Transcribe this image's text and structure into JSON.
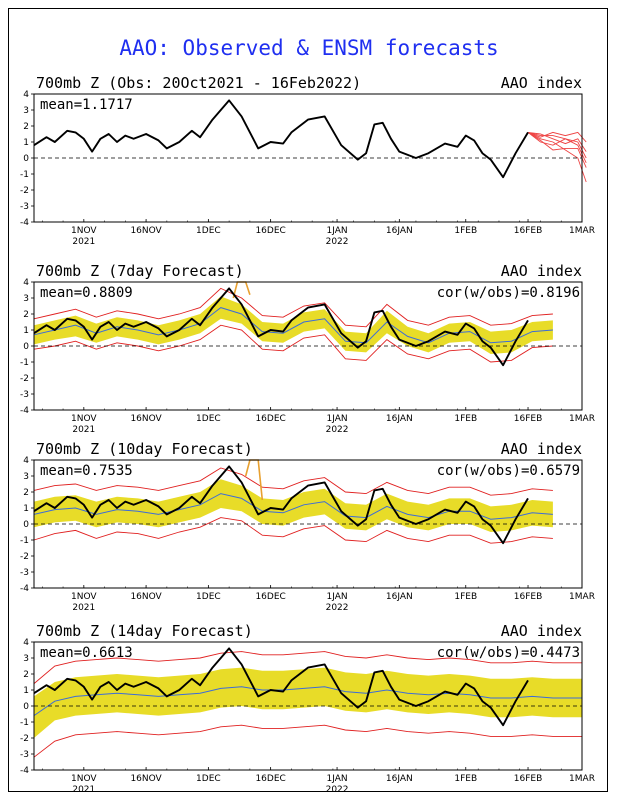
{
  "title": "AAO: Observed & ENSM forecasts",
  "x_tick_labels": [
    {
      "label": "1NOV",
      "sub": "2021",
      "day": 12
    },
    {
      "label": "16NOV",
      "sub": "",
      "day": 27
    },
    {
      "label": "1DEC",
      "sub": "",
      "day": 42
    },
    {
      "label": "16DEC",
      "sub": "",
      "day": 57
    },
    {
      "label": "1JAN",
      "sub": "2022",
      "day": 73
    },
    {
      "label": "16JAN",
      "sub": "",
      "day": 88
    },
    {
      "label": "1FEB",
      "sub": "",
      "day": 104
    },
    {
      "label": "16FEB",
      "sub": "",
      "day": 119
    },
    {
      "label": "1MAR",
      "sub": "",
      "day": 132
    }
  ],
  "y_ticks": [
    "4",
    "3",
    "2",
    "1",
    "0",
    "-1",
    "-2",
    "-3",
    "-4"
  ],
  "colors": {
    "observed": "#000000",
    "spread": "#e8dc28",
    "mean": "#3c6cd8",
    "bound": "#e02020",
    "members": "#ee4444",
    "spike": "#e8a030",
    "title": "#1f2ff0"
  },
  "chart_data": [
    {
      "type": "line",
      "title": "700mb Z (Obs: 20Oct2021 - 16Feb2022)",
      "right_label": "AAO index",
      "mean_label": "mean=1.1717",
      "cor_label": "",
      "ylim": [
        -4,
        4
      ],
      "x_unit": "days since 20Oct2021",
      "xlim": [
        0,
        132
      ],
      "observed": {
        "x": [
          0,
          3,
          5,
          8,
          10,
          12,
          14,
          16,
          18,
          20,
          22,
          24,
          27,
          30,
          32,
          35,
          38,
          40,
          43,
          47,
          50,
          54,
          57,
          60,
          62,
          66,
          70,
          74,
          78,
          80,
          82,
          84,
          86,
          88,
          92,
          95,
          99,
          102,
          104,
          106,
          108,
          110,
          113,
          116,
          119
        ],
        "y": [
          0.8,
          1.3,
          1.0,
          1.7,
          1.6,
          1.2,
          0.4,
          1.2,
          1.5,
          1.0,
          1.4,
          1.2,
          1.5,
          1.1,
          0.6,
          1.0,
          1.7,
          1.3,
          2.4,
          3.6,
          2.6,
          0.6,
          1.0,
          0.9,
          1.6,
          2.4,
          2.6,
          0.8,
          -0.1,
          0.3,
          2.1,
          2.2,
          1.2,
          0.4,
          0.0,
          0.3,
          0.9,
          0.7,
          1.4,
          1.1,
          0.3,
          -0.1,
          -1.2,
          0.3,
          1.6
        ]
      },
      "members": [
        {
          "x": [
            119,
            122,
            125,
            128,
            131,
            133
          ],
          "y": [
            1.6,
            1.2,
            1.0,
            0.5,
            0.0,
            -1.5
          ]
        },
        {
          "x": [
            119,
            122,
            125,
            128,
            131,
            133
          ],
          "y": [
            1.6,
            1.4,
            1.4,
            1.2,
            1.0,
            0.0
          ]
        },
        {
          "x": [
            119,
            122,
            125,
            128,
            131,
            133
          ],
          "y": [
            1.6,
            1.0,
            0.8,
            1.2,
            0.8,
            -0.3
          ]
        },
        {
          "x": [
            119,
            122,
            125,
            128,
            131,
            133
          ],
          "y": [
            1.6,
            1.3,
            1.6,
            1.4,
            1.6,
            1.0
          ]
        },
        {
          "x": [
            119,
            122,
            125,
            128,
            131,
            133
          ],
          "y": [
            1.6,
            1.1,
            0.5,
            0.6,
            0.6,
            -0.6
          ]
        },
        {
          "x": [
            119,
            122,
            125,
            128,
            131,
            133
          ],
          "y": [
            1.6,
            1.5,
            1.2,
            0.9,
            1.2,
            0.4
          ]
        }
      ]
    },
    {
      "type": "line",
      "title": "700mb Z (7day Forecast)",
      "right_label": "AAO index",
      "mean_label": "mean=0.8809",
      "cor_label": "cor(w/obs)=0.8196",
      "ylim": [
        -4,
        4
      ],
      "x_unit": "days since 20Oct2021",
      "xlim": [
        0,
        132
      ],
      "observed": {
        "x": [
          0,
          3,
          5,
          8,
          10,
          12,
          14,
          16,
          18,
          20,
          22,
          24,
          27,
          30,
          32,
          35,
          38,
          40,
          43,
          47,
          50,
          54,
          57,
          60,
          62,
          66,
          70,
          74,
          78,
          80,
          82,
          84,
          86,
          88,
          92,
          95,
          99,
          102,
          104,
          106,
          108,
          110,
          113,
          116,
          119
        ],
        "y": [
          0.8,
          1.3,
          1.0,
          1.7,
          1.6,
          1.2,
          0.4,
          1.2,
          1.5,
          1.0,
          1.4,
          1.2,
          1.5,
          1.1,
          0.6,
          1.0,
          1.7,
          1.3,
          2.4,
          3.6,
          2.6,
          0.6,
          1.0,
          0.9,
          1.6,
          2.4,
          2.6,
          0.8,
          -0.1,
          0.3,
          2.1,
          2.2,
          1.2,
          0.4,
          0.0,
          0.3,
          0.9,
          0.7,
          1.4,
          1.1,
          0.3,
          -0.1,
          -1.2,
          0.3,
          1.6
        ]
      },
      "ens_mean": {
        "x": [
          0,
          5,
          10,
          15,
          20,
          25,
          30,
          35,
          40,
          45,
          50,
          55,
          60,
          65,
          70,
          75,
          80,
          85,
          90,
          95,
          100,
          105,
          110,
          115,
          120,
          125
        ],
        "y": [
          0.7,
          1.0,
          1.3,
          0.8,
          1.2,
          1.0,
          0.7,
          1.0,
          1.4,
          2.4,
          2.0,
          0.9,
          0.8,
          1.5,
          1.7,
          0.3,
          0.2,
          1.5,
          0.6,
          0.2,
          0.8,
          0.9,
          0.2,
          0.3,
          0.9,
          1.0
        ]
      },
      "spread": {
        "lower": [
          0.1,
          0.4,
          0.6,
          0.2,
          0.6,
          0.4,
          0.1,
          0.4,
          0.8,
          1.7,
          1.4,
          0.3,
          0.2,
          0.9,
          1.1,
          -0.3,
          -0.4,
          0.8,
          0.0,
          -0.4,
          0.2,
          0.3,
          -0.5,
          -0.4,
          0.3,
          0.4
        ],
        "upper": [
          1.3,
          1.6,
          1.9,
          1.4,
          1.8,
          1.6,
          1.3,
          1.6,
          2.0,
          3.1,
          2.6,
          1.5,
          1.4,
          2.1,
          2.3,
          0.9,
          0.8,
          2.2,
          1.2,
          0.8,
          1.4,
          1.5,
          0.9,
          1.0,
          1.5,
          1.6
        ]
      },
      "bounds": {
        "lower": [
          -0.2,
          0.0,
          0.3,
          -0.2,
          0.2,
          0.0,
          -0.3,
          0.0,
          0.4,
          1.3,
          1.0,
          -0.2,
          -0.3,
          0.5,
          0.7,
          -0.8,
          -0.9,
          0.4,
          -0.5,
          -0.8,
          -0.3,
          -0.2,
          -1.0,
          -0.9,
          -0.1,
          0.0
        ],
        "upper": [
          1.7,
          2.0,
          2.3,
          1.8,
          2.2,
          2.0,
          1.7,
          2.0,
          2.4,
          3.6,
          3.0,
          1.9,
          1.8,
          2.5,
          2.7,
          1.3,
          1.2,
          2.6,
          1.6,
          1.3,
          1.8,
          1.9,
          1.3,
          1.4,
          1.9,
          2.0
        ]
      },
      "spike": {
        "x": [
          48,
          49,
          50,
          51,
          52
        ],
        "y": [
          3.0,
          4.0,
          4.0,
          4.0,
          3.2
        ]
      }
    },
    {
      "type": "line",
      "title": "700mb Z (10day Forecast)",
      "right_label": "AAO index",
      "mean_label": "mean=0.7535",
      "cor_label": "cor(w/obs)=0.6579",
      "ylim": [
        -4,
        4
      ],
      "x_unit": "days since 20Oct2021",
      "xlim": [
        0,
        132
      ],
      "observed": {
        "x": [
          0,
          3,
          5,
          8,
          10,
          12,
          14,
          16,
          18,
          20,
          22,
          24,
          27,
          30,
          32,
          35,
          38,
          40,
          43,
          47,
          50,
          54,
          57,
          60,
          62,
          66,
          70,
          74,
          78,
          80,
          82,
          84,
          86,
          88,
          92,
          95,
          99,
          102,
          104,
          106,
          108,
          110,
          113,
          116,
          119
        ],
        "y": [
          0.8,
          1.3,
          1.0,
          1.7,
          1.6,
          1.2,
          0.4,
          1.2,
          1.5,
          1.0,
          1.4,
          1.2,
          1.5,
          1.1,
          0.6,
          1.0,
          1.7,
          1.3,
          2.4,
          3.6,
          2.6,
          0.6,
          1.0,
          0.9,
          1.6,
          2.4,
          2.6,
          0.8,
          -0.1,
          0.3,
          2.1,
          2.2,
          1.2,
          0.4,
          0.0,
          0.3,
          0.9,
          0.7,
          1.4,
          1.1,
          0.3,
          -0.1,
          -1.2,
          0.3,
          1.6
        ]
      },
      "ens_mean": {
        "x": [
          0,
          5,
          10,
          15,
          20,
          25,
          30,
          35,
          40,
          45,
          50,
          55,
          60,
          65,
          70,
          75,
          80,
          85,
          90,
          95,
          100,
          105,
          110,
          115,
          120,
          125
        ],
        "y": [
          0.6,
          0.9,
          1.0,
          0.6,
          0.9,
          0.8,
          0.6,
          0.9,
          1.2,
          1.9,
          1.6,
          0.8,
          0.7,
          1.2,
          1.4,
          0.5,
          0.4,
          1.1,
          0.6,
          0.4,
          0.8,
          0.8,
          0.3,
          0.4,
          0.7,
          0.6
        ]
      },
      "spread": {
        "lower": [
          -0.2,
          0.1,
          0.2,
          -0.2,
          0.1,
          0.0,
          -0.2,
          0.1,
          0.4,
          1.0,
          0.8,
          0.0,
          -0.1,
          0.4,
          0.6,
          -0.3,
          -0.4,
          0.3,
          -0.2,
          -0.4,
          0.0,
          0.0,
          -0.5,
          -0.4,
          -0.1,
          -0.2
        ],
        "upper": [
          1.4,
          1.7,
          1.8,
          1.4,
          1.7,
          1.6,
          1.4,
          1.7,
          2.0,
          2.8,
          2.4,
          1.6,
          1.5,
          2.0,
          2.2,
          1.3,
          1.2,
          1.9,
          1.4,
          1.2,
          1.6,
          1.6,
          1.1,
          1.2,
          1.5,
          1.4
        ]
      },
      "bounds": {
        "lower": [
          -1.0,
          -0.6,
          -0.4,
          -0.9,
          -0.5,
          -0.6,
          -0.9,
          -0.5,
          -0.2,
          0.4,
          0.2,
          -0.7,
          -0.8,
          -0.3,
          -0.1,
          -1.0,
          -1.1,
          -0.4,
          -0.9,
          -1.1,
          -0.7,
          -0.7,
          -1.2,
          -1.1,
          -0.8,
          -0.9
        ],
        "upper": [
          2.1,
          2.4,
          2.5,
          2.1,
          2.4,
          2.3,
          2.1,
          2.4,
          2.7,
          3.5,
          3.1,
          2.3,
          2.2,
          2.7,
          2.9,
          2.0,
          1.9,
          2.6,
          2.1,
          1.9,
          2.3,
          2.3,
          1.8,
          1.9,
          2.2,
          2.1
        ]
      },
      "spike": {
        "x": [
          51,
          52,
          53,
          54,
          55
        ],
        "y": [
          3.0,
          4.0,
          4.0,
          4.0,
          1.5
        ]
      }
    },
    {
      "type": "line",
      "title": "700mb Z (14day Forecast)",
      "right_label": "AAO index",
      "mean_label": "mean=0.6613",
      "cor_label": "cor(w/obs)=0.4473",
      "ylim": [
        -4,
        4
      ],
      "x_unit": "days since 20Oct2021",
      "xlim": [
        0,
        132
      ],
      "observed": {
        "x": [
          0,
          3,
          5,
          8,
          10,
          12,
          14,
          16,
          18,
          20,
          22,
          24,
          27,
          30,
          32,
          35,
          38,
          40,
          43,
          47,
          50,
          54,
          57,
          60,
          62,
          66,
          70,
          74,
          78,
          80,
          82,
          84,
          86,
          88,
          92,
          95,
          99,
          102,
          104,
          106,
          108,
          110,
          113,
          116,
          119
        ],
        "y": [
          0.8,
          1.3,
          1.0,
          1.7,
          1.6,
          1.2,
          0.4,
          1.2,
          1.5,
          1.0,
          1.4,
          1.2,
          1.5,
          1.1,
          0.6,
          1.0,
          1.7,
          1.3,
          2.4,
          3.6,
          2.6,
          0.6,
          1.0,
          0.9,
          1.6,
          2.4,
          2.6,
          0.8,
          -0.1,
          0.3,
          2.1,
          2.2,
          1.2,
          0.4,
          0.0,
          0.3,
          0.9,
          0.7,
          1.4,
          1.1,
          0.3,
          -0.1,
          -1.2,
          0.3,
          1.6
        ]
      },
      "ens_mean": {
        "x": [
          0,
          5,
          10,
          15,
          20,
          25,
          30,
          35,
          40,
          45,
          50,
          55,
          60,
          65,
          70,
          75,
          80,
          85,
          90,
          95,
          100,
          105,
          110,
          115,
          120,
          125,
          132
        ],
        "y": [
          -0.6,
          0.3,
          0.6,
          0.7,
          0.8,
          0.7,
          0.6,
          0.7,
          0.8,
          1.1,
          1.2,
          1.0,
          1.0,
          1.1,
          1.2,
          0.9,
          0.8,
          1.0,
          0.8,
          0.7,
          0.8,
          0.7,
          0.5,
          0.5,
          0.6,
          0.5,
          0.5
        ]
      },
      "spread": {
        "lower": [
          -2.0,
          -0.9,
          -0.6,
          -0.5,
          -0.4,
          -0.5,
          -0.6,
          -0.5,
          -0.4,
          -0.1,
          0.0,
          -0.2,
          -0.2,
          -0.1,
          0.0,
          -0.3,
          -0.4,
          -0.2,
          -0.4,
          -0.5,
          -0.4,
          -0.5,
          -0.7,
          -0.7,
          -0.6,
          -0.7,
          -0.7
        ],
        "upper": [
          0.6,
          1.5,
          1.8,
          1.9,
          2.0,
          1.9,
          1.8,
          1.9,
          2.0,
          2.3,
          2.4,
          2.2,
          2.2,
          2.3,
          2.4,
          2.1,
          2.0,
          2.2,
          2.0,
          1.9,
          2.0,
          1.9,
          1.7,
          1.7,
          1.8,
          1.7,
          1.7
        ]
      },
      "bounds": {
        "lower": [
          -3.2,
          -2.2,
          -1.8,
          -1.7,
          -1.6,
          -1.7,
          -1.8,
          -1.7,
          -1.6,
          -1.3,
          -1.2,
          -1.4,
          -1.4,
          -1.3,
          -1.2,
          -1.5,
          -1.6,
          -1.4,
          -1.6,
          -1.7,
          -1.6,
          -1.7,
          -1.9,
          -1.9,
          -1.8,
          -1.9,
          -1.9
        ],
        "upper": [
          1.4,
          2.5,
          2.8,
          2.9,
          3.0,
          2.9,
          2.8,
          2.9,
          3.0,
          3.3,
          3.4,
          3.2,
          3.2,
          3.3,
          3.4,
          3.1,
          3.0,
          3.2,
          3.0,
          2.9,
          3.0,
          2.9,
          2.7,
          2.7,
          2.8,
          2.7,
          2.7
        ]
      }
    }
  ]
}
